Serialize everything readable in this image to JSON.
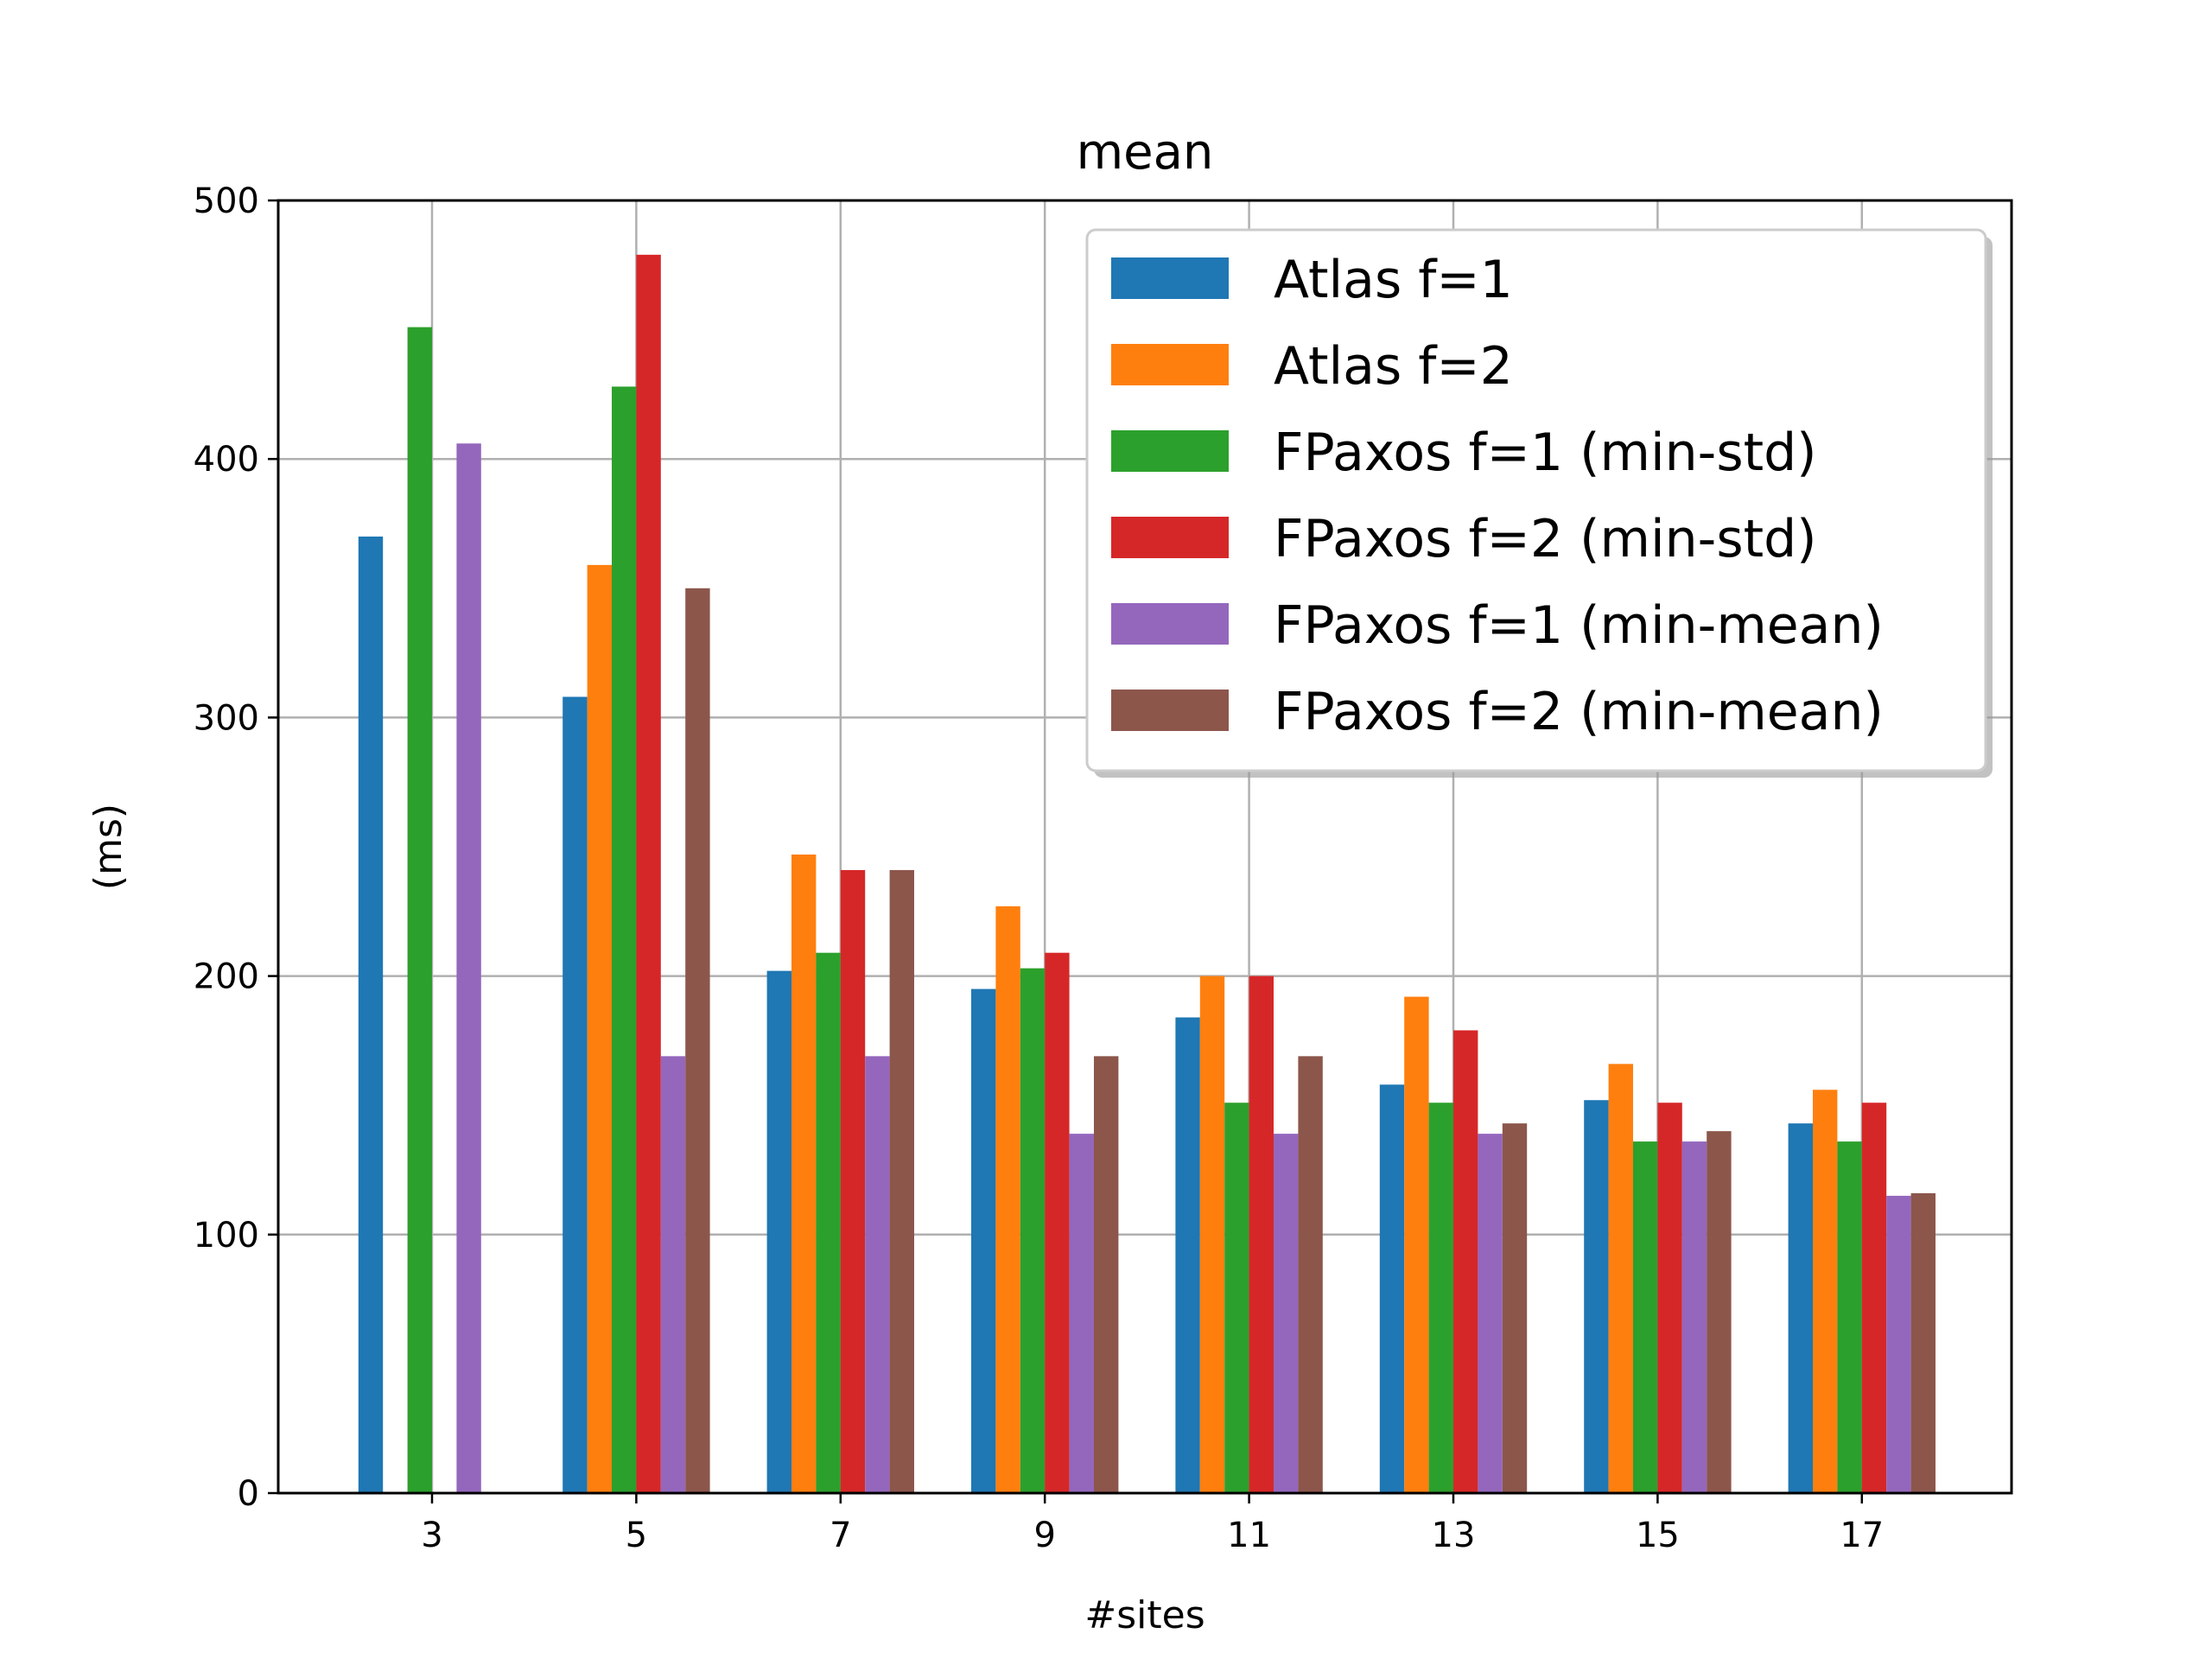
{
  "chart_data": {
    "type": "bar",
    "title": "mean",
    "xlabel": "#sites",
    "ylabel": "(ms)",
    "categories": [
      "3",
      "5",
      "7",
      "9",
      "11",
      "13",
      "15",
      "17"
    ],
    "ylim": [
      0,
      500
    ],
    "yticks": [
      0,
      100,
      200,
      300,
      400,
      500
    ],
    "grid": true,
    "legend_position": "top-right",
    "series": [
      {
        "name": "Atlas f=1",
        "color": "#1f77b4",
        "values": [
          370,
          308,
          202,
          195,
          184,
          158,
          152,
          143
        ]
      },
      {
        "name": "Atlas f=2",
        "color": "#ff7f0e",
        "values": [
          null,
          359,
          247,
          227,
          200,
          192,
          166,
          156
        ]
      },
      {
        "name": "FPaxos f=1 (min-std)",
        "color": "#2ca02c",
        "values": [
          451,
          428,
          209,
          203,
          151,
          151,
          136,
          136
        ]
      },
      {
        "name": "FPaxos f=2 (min-std)",
        "color": "#d62728",
        "values": [
          null,
          479,
          241,
          209,
          200,
          179,
          151,
          151
        ]
      },
      {
        "name": "FPaxos f=1 (min-mean)",
        "color": "#9467bd",
        "values": [
          406,
          169,
          169,
          139,
          139,
          139,
          136,
          115
        ]
      },
      {
        "name": "FPaxos f=2 (min-mean)",
        "color": "#8c564b",
        "values": [
          null,
          350,
          241,
          169,
          169,
          143,
          140,
          116
        ]
      }
    ]
  }
}
